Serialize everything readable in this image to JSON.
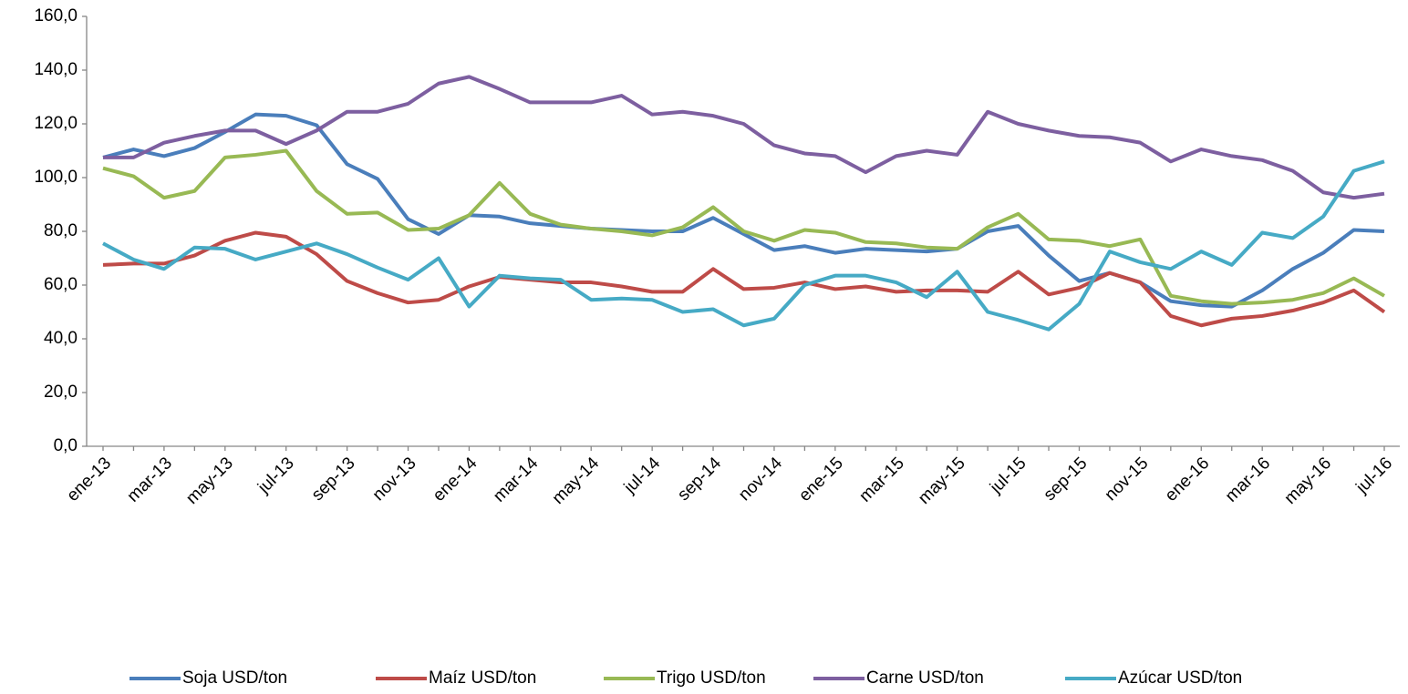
{
  "chart_data": {
    "type": "line",
    "categories": [
      "ene-13",
      null,
      "mar-13",
      null,
      "may-13",
      null,
      "jul-13",
      null,
      "sep-13",
      null,
      "nov-13",
      null,
      "ene-14",
      null,
      "mar-14",
      null,
      "may-14",
      null,
      "jul-14",
      null,
      "sep-14",
      null,
      "nov-14",
      null,
      "ene-15",
      null,
      "mar-15",
      null,
      "may-15",
      null,
      "jul-15",
      null,
      "sep-15",
      null,
      "nov-15",
      null,
      "ene-16",
      null,
      "mar-16",
      null,
      "may-16",
      null,
      "jul-16"
    ],
    "series": [
      {
        "name": "Soja USD/ton",
        "color": "#4a7ebb",
        "values": [
          107.5,
          110.5,
          108,
          111,
          117,
          123.5,
          123,
          119.5,
          105,
          99.5,
          84.5,
          79,
          86,
          85.5,
          83,
          82,
          81,
          80.5,
          80,
          80,
          85,
          79,
          73,
          74.5,
          72,
          73.5,
          73,
          72.5,
          73.5,
          80,
          82,
          71,
          61.5,
          64.5,
          61,
          54,
          52.5,
          52,
          58,
          66,
          72,
          80.5,
          80
        ]
      },
      {
        "name": "Maíz USD/ton",
        "color": "#be4b48",
        "values": [
          67.5,
          68,
          68,
          71,
          76.5,
          79.5,
          78,
          71.5,
          61.5,
          57,
          53.5,
          54.5,
          59.5,
          63,
          62,
          61,
          61,
          59.5,
          57.5,
          57.5,
          66,
          58.5,
          59,
          61,
          58.5,
          59.5,
          57.5,
          58,
          58,
          57.5,
          65,
          56.5,
          59,
          64.5,
          61,
          48.5,
          45,
          47.5,
          48.5,
          50.5,
          53.5,
          58,
          50
        ]
      },
      {
        "name": "Trigo USD/ton",
        "color": "#98b954",
        "values": [
          103.5,
          100.5,
          92.5,
          95,
          107.5,
          108.5,
          110,
          95,
          86.5,
          87,
          80.5,
          81,
          86,
          98,
          86.5,
          82.5,
          81,
          80,
          78.5,
          81.5,
          89,
          80,
          76.5,
          80.5,
          79.5,
          76,
          75.5,
          74,
          73.5,
          81.5,
          86.5,
          77,
          76.5,
          74.5,
          77,
          56,
          54,
          53,
          53.5,
          54.5,
          57,
          62.5,
          56
        ]
      },
      {
        "name": "Carne  USD/ton",
        "color": "#7d5fa0",
        "values": [
          107.5,
          107.5,
          113,
          115.5,
          117.5,
          117.5,
          112.5,
          117.5,
          124.5,
          124.5,
          127.5,
          135,
          137.5,
          133,
          128,
          128,
          128,
          130.5,
          123.5,
          124.5,
          123,
          120,
          112,
          109,
          108,
          102,
          108,
          110,
          108.5,
          124.5,
          120,
          117.5,
          115.5,
          115,
          113,
          106,
          110.5,
          108,
          106.5,
          102.5,
          94.5,
          92.5,
          94
        ]
      },
      {
        "name": "Azúcar USD/ton",
        "color": "#46aac5",
        "values": [
          75.5,
          69.5,
          66,
          74,
          73.5,
          69.5,
          72.5,
          75.5,
          71.5,
          66.5,
          62,
          70,
          52,
          63.5,
          62.5,
          62,
          54.5,
          55,
          54.5,
          50,
          51,
          45,
          47.5,
          60,
          63.5,
          63.5,
          61,
          55.5,
          65,
          50,
          47,
          43.5,
          53,
          72.5,
          68.5,
          66,
          72.5,
          67.5,
          79.5,
          77.5,
          85.5,
          102.5,
          106
        ]
      }
    ],
    "ylim": [
      0,
      160
    ],
    "yticks": [
      {
        "value": 0,
        "label": "0,0"
      },
      {
        "value": 20,
        "label": "20,0"
      },
      {
        "value": 40,
        "label": "40,0"
      },
      {
        "value": 60,
        "label": "60,0"
      },
      {
        "value": 80,
        "label": "80,0"
      },
      {
        "value": 100,
        "label": "100,0"
      },
      {
        "value": 120,
        "label": "120,0"
      },
      {
        "value": 140,
        "label": "140,0"
      },
      {
        "value": 160,
        "label": "160,0"
      }
    ],
    "grid": false,
    "legend": "bottom"
  }
}
